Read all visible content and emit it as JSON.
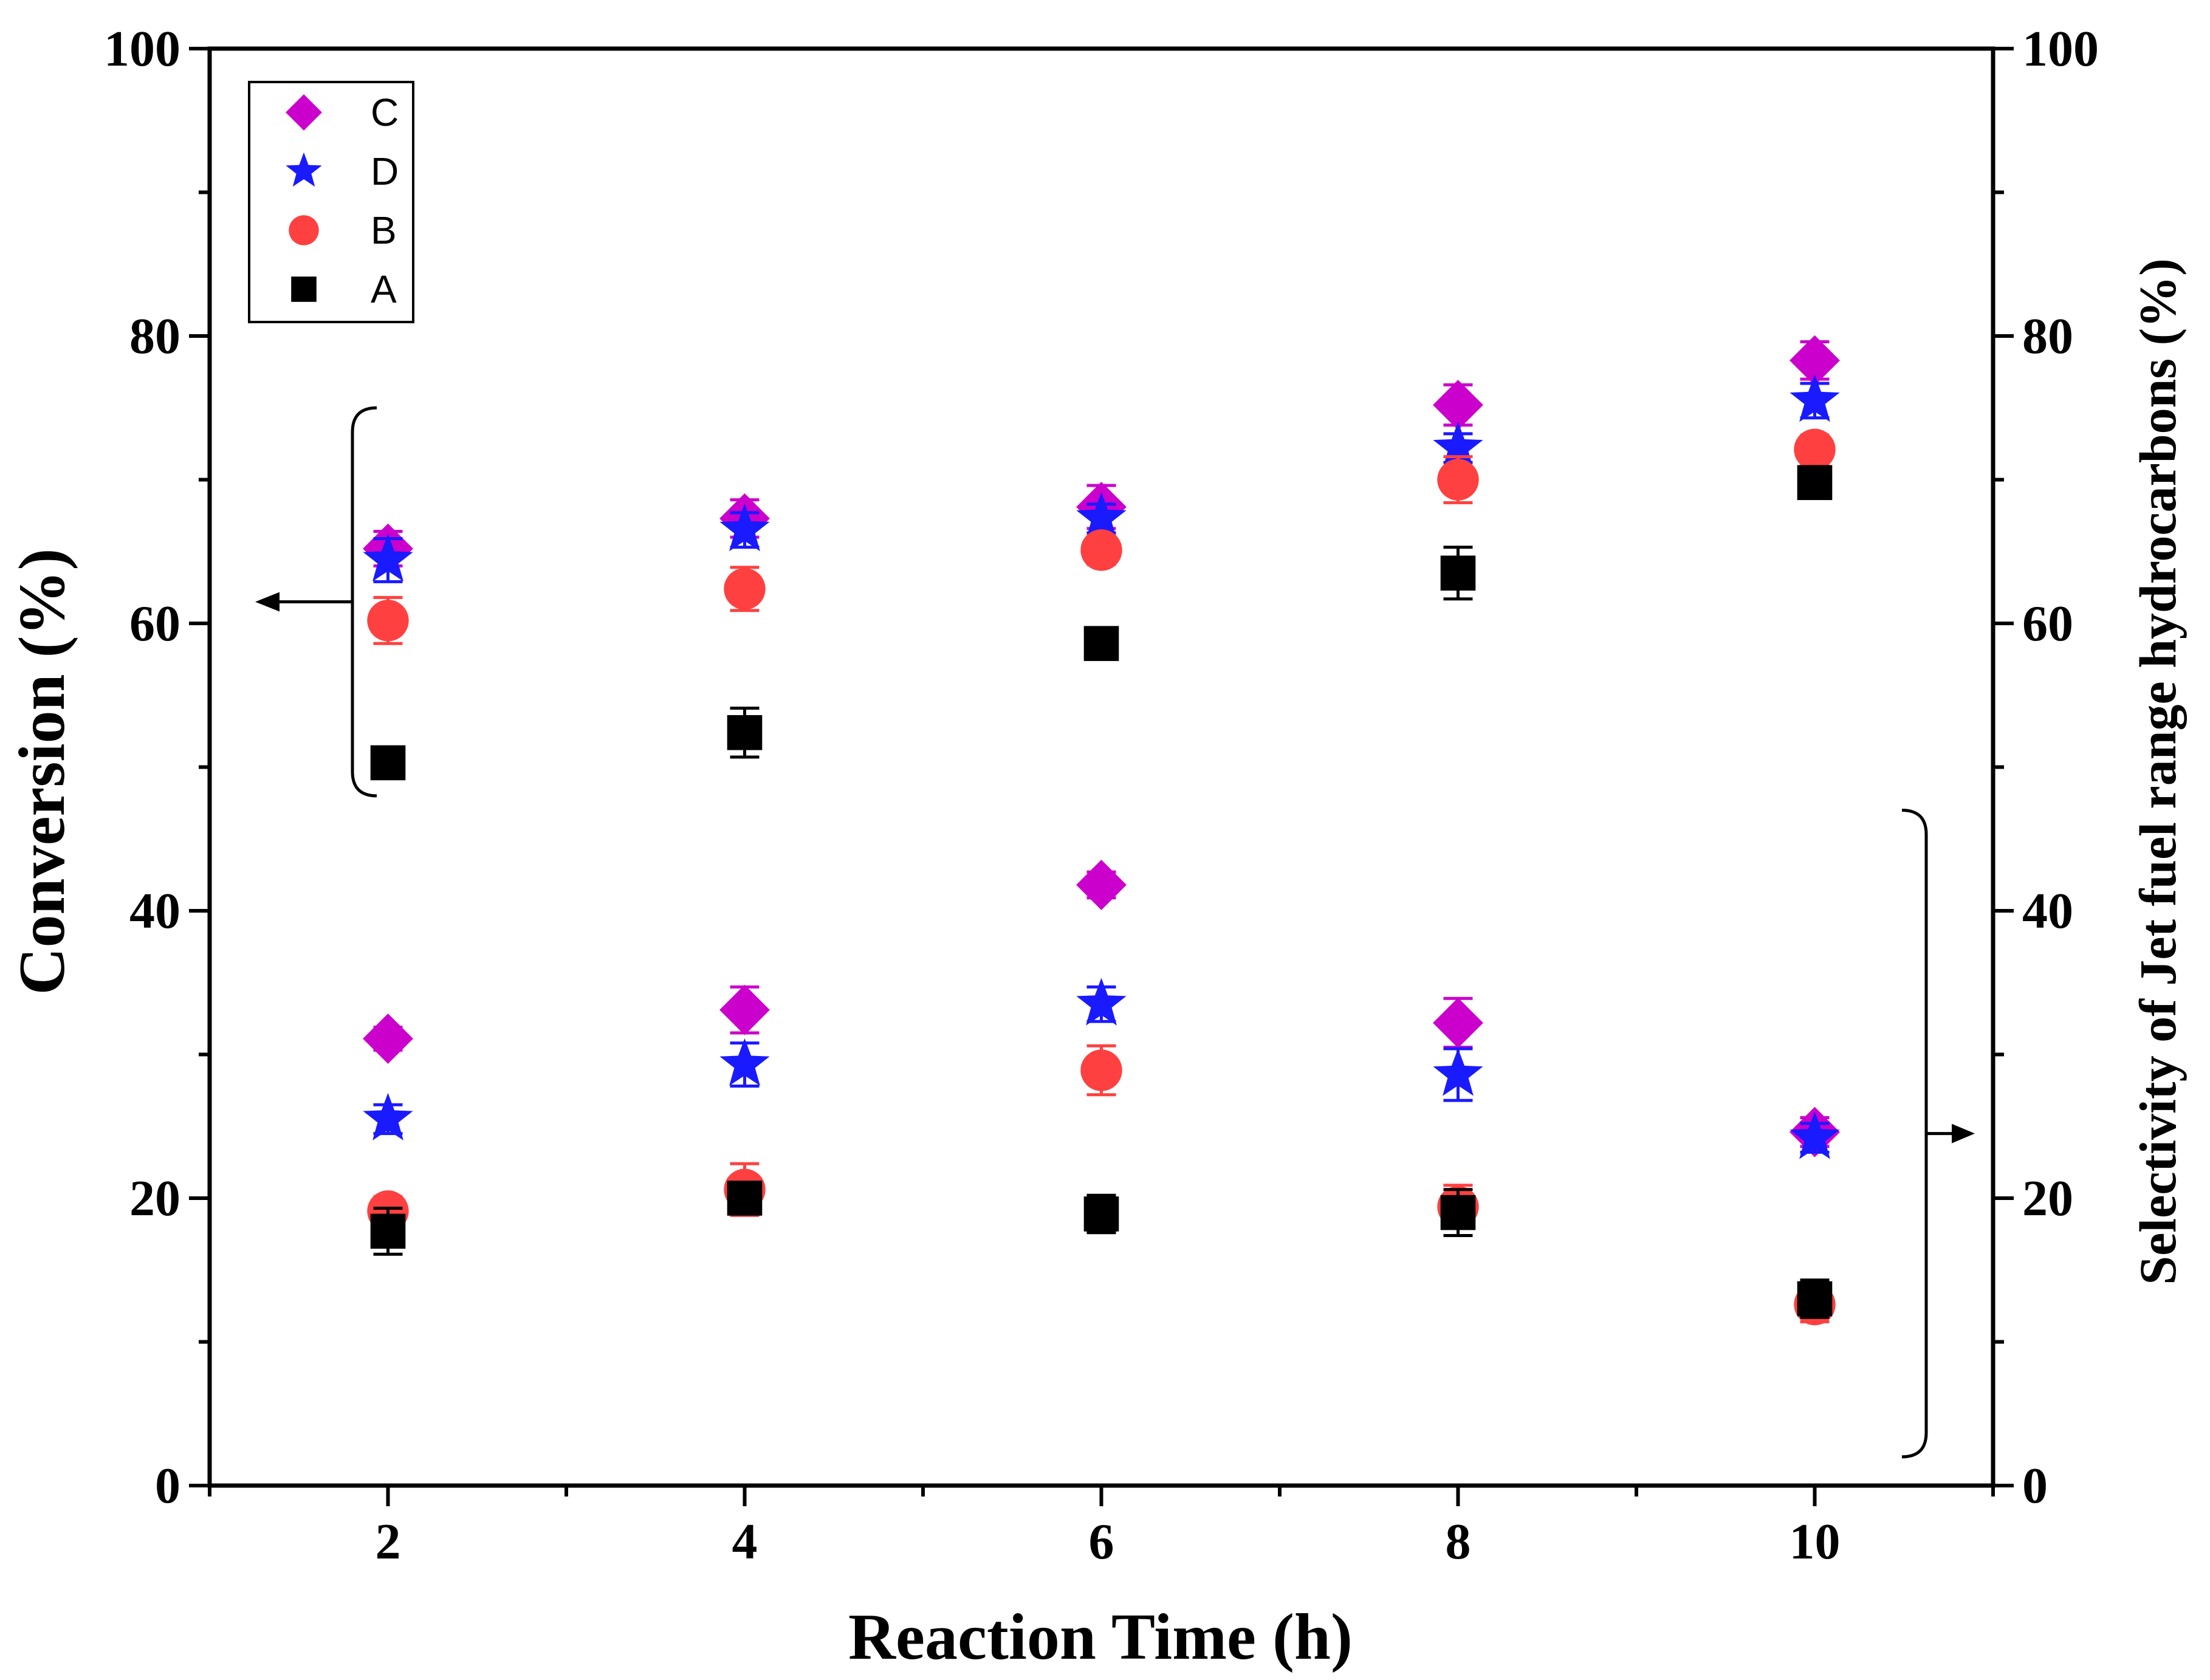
{
  "chart_data": {
    "type": "scatter",
    "xlabel": "Reaction Time (h)",
    "ylabel_left": "Conversion (%)",
    "ylabel_right": "Selectivity of Jet fuel range hydrocarbons (%)",
    "xlim": [
      1,
      11
    ],
    "ylim": [
      0,
      100
    ],
    "x_ticks": [
      "2",
      "4",
      "6",
      "8",
      "10"
    ],
    "y_ticks": [
      "0",
      "20",
      "40",
      "60",
      "80",
      "100"
    ],
    "x": [
      2,
      4,
      6,
      8,
      10
    ],
    "legend": [
      "C",
      "D",
      "B",
      "A"
    ],
    "series": [
      {
        "name": "C",
        "group": "conversion",
        "marker": "diamond",
        "color": "#cc00cc",
        "values": [
          65.2,
          67.3,
          68.1,
          75.2,
          78.3
        ],
        "errors": [
          1.2,
          1.3,
          1.5,
          1.4,
          1.3
        ]
      },
      {
        "name": "D",
        "group": "conversion",
        "marker": "star",
        "color": "#1a1aff",
        "values": [
          64.4,
          66.5,
          67.3,
          72.2,
          75.5
        ],
        "errors": [
          1.5,
          1.2,
          1.0,
          1.0,
          1.2
        ]
      },
      {
        "name": "B",
        "group": "conversion",
        "marker": "circle",
        "color": "#ff4040",
        "values": [
          60.2,
          62.4,
          65.1,
          70.0,
          72.1
        ],
        "errors": [
          1.6,
          1.5,
          1.0,
          1.6,
          1.0
        ]
      },
      {
        "name": "A",
        "group": "conversion",
        "marker": "square",
        "color": "#000000",
        "values": [
          50.3,
          52.4,
          58.6,
          63.5,
          69.8
        ],
        "errors": [
          0.8,
          1.7,
          0.9,
          1.8,
          1.0
        ]
      },
      {
        "name": "C",
        "group": "selectivity",
        "marker": "diamond",
        "color": "#cc00cc",
        "values": [
          31.1,
          33.1,
          41.8,
          32.2,
          24.6
        ],
        "errors": [
          0.8,
          1.6,
          0.9,
          1.7,
          1.0
        ]
      },
      {
        "name": "D",
        "group": "selectivity",
        "marker": "star",
        "color": "#1a1aff",
        "values": [
          25.5,
          29.3,
          33.5,
          28.6,
          24.2
        ],
        "errors": [
          1.0,
          1.5,
          1.2,
          1.8,
          1.0
        ]
      },
      {
        "name": "B",
        "group": "selectivity",
        "marker": "circle",
        "color": "#ff4040",
        "values": [
          19.1,
          20.6,
          28.9,
          19.4,
          12.6
        ],
        "errors": [
          1.0,
          1.8,
          1.7,
          1.5,
          1.2
        ]
      },
      {
        "name": "A",
        "group": "selectivity",
        "marker": "square",
        "color": "#000000",
        "values": [
          17.7,
          20.0,
          18.9,
          19.0,
          13.0
        ],
        "errors": [
          1.6,
          1.0,
          1.3,
          1.6,
          1.3
        ]
      }
    ],
    "annotations": [
      {
        "text": "conversion-bracket",
        "points_to": "left-axis",
        "range": [
          48,
          75
        ]
      },
      {
        "text": "selectivity-bracket",
        "points_to": "right-axis",
        "range": [
          2,
          47
        ]
      }
    ]
  }
}
